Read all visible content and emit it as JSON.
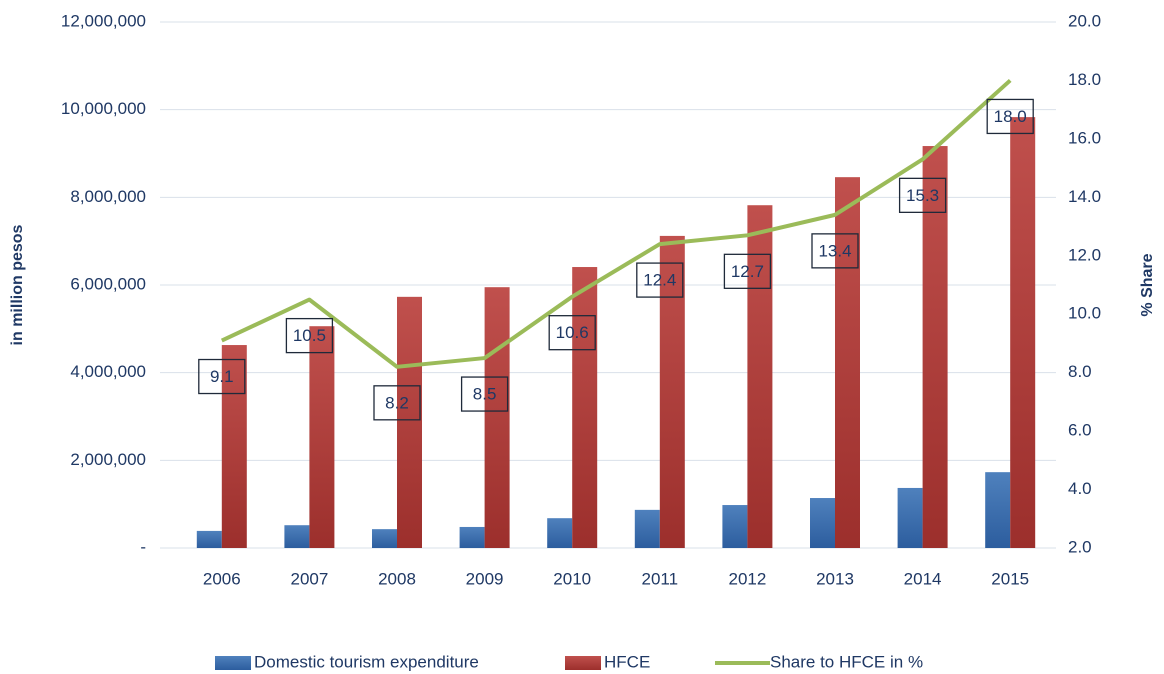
{
  "chart_data": {
    "type": "bar-line",
    "ylabel": "in million pesos",
    "y2label": "% Share",
    "categories": [
      "2006",
      "2007",
      "2008",
      "2009",
      "2010",
      "2011",
      "2012",
      "2013",
      "2014",
      "2015"
    ],
    "series": [
      {
        "name": "Domestic tourism expenditure",
        "type": "bar",
        "color": "#4f81bd",
        "values": [
          390000,
          520000,
          430000,
          480000,
          680000,
          870000,
          980000,
          1140000,
          1370000,
          1730000
        ]
      },
      {
        "name": "HFCE",
        "type": "bar",
        "color": "#c0504d",
        "values": [
          4630000,
          5060000,
          5730000,
          5950000,
          6410000,
          7120000,
          7820000,
          8460000,
          9170000,
          9830000
        ]
      },
      {
        "name": "Share to HFCE in %",
        "type": "line",
        "axis": "y2",
        "color": "#9bbb59",
        "values": [
          9.1,
          10.5,
          8.2,
          8.5,
          10.6,
          12.4,
          12.7,
          13.4,
          15.3,
          18.0
        ],
        "value_labels": [
          "9.1",
          "10.5",
          "8.2",
          "8.5",
          "10.6",
          "12.4",
          "12.7",
          "13.4",
          "15.3",
          "18.0"
        ]
      }
    ],
    "ylim": [
      0,
      12000000
    ],
    "yticks": [
      {
        "value": 0,
        "label": "-"
      },
      {
        "value": 2000000,
        "label": "2,000,000"
      },
      {
        "value": 4000000,
        "label": "4,000,000"
      },
      {
        "value": 6000000,
        "label": "6,000,000"
      },
      {
        "value": 8000000,
        "label": "8,000,000"
      },
      {
        "value": 10000000,
        "label": "10,000,000"
      },
      {
        "value": 12000000,
        "label": "12,000,000"
      }
    ],
    "y2lim": [
      2,
      20
    ],
    "y2ticks": [
      {
        "value": 2,
        "label": "2.0"
      },
      {
        "value": 4,
        "label": "4.0"
      },
      {
        "value": 6,
        "label": "6.0"
      },
      {
        "value": 8,
        "label": "8.0"
      },
      {
        "value": 10,
        "label": "10.0"
      },
      {
        "value": 12,
        "label": "12.0"
      },
      {
        "value": 14,
        "label": "14.0"
      },
      {
        "value": 16,
        "label": "16.0"
      },
      {
        "value": 18,
        "label": "18.0"
      },
      {
        "value": 20,
        "label": "20.0"
      }
    ],
    "grid": true,
    "legend": "bottom"
  }
}
